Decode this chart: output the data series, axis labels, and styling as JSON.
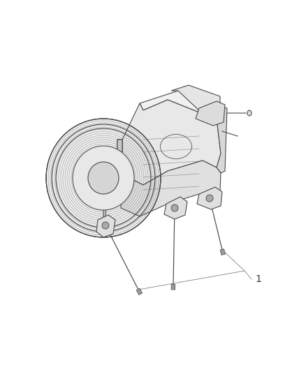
{
  "background_color": "#ffffff",
  "line_color": "#4a4a4a",
  "fill_light": "#f5f5f5",
  "fill_mid": "#e0e0e0",
  "fill_dark": "#c8c8c8",
  "fill_darker": "#b0b0b0",
  "label_color": "#333333",
  "label_text": "1",
  "label_fontsize": 10,
  "fig_width": 4.38,
  "fig_height": 5.33,
  "dpi": 100
}
